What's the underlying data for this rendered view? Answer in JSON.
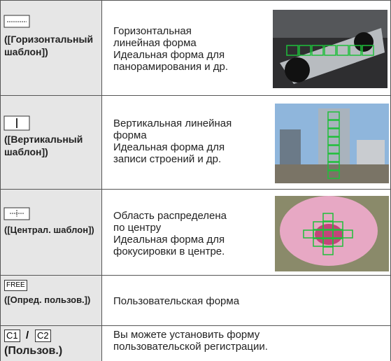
{
  "rows": [
    {
      "label": "([Горизонтальный шаблон])",
      "description": [
        "Горизонтальная",
        "линейная форма",
        "Идеальная форма для",
        "панорамирования и др."
      ]
    },
    {
      "label": "([Вертикальный шаблон])",
      "description": [
        "Вертикальная линейная",
        "форма",
        "Идеальная форма для",
        "записи строений и др."
      ]
    },
    {
      "label": "([Централ. шаблон])",
      "description": [
        "Область распределена",
        "по центру",
        "Идеальная форма для",
        "фокусировки в центре."
      ]
    },
    {
      "icon": "FREE",
      "label": "([Опред. пользов.])",
      "description": [
        "Пользовательская форма"
      ]
    },
    {
      "icons": [
        "C1",
        "/",
        "C2"
      ],
      "label": "(Пользов.)",
      "description": [
        "Вы можете установить форму",
        "пользовательской регистрации."
      ]
    }
  ]
}
